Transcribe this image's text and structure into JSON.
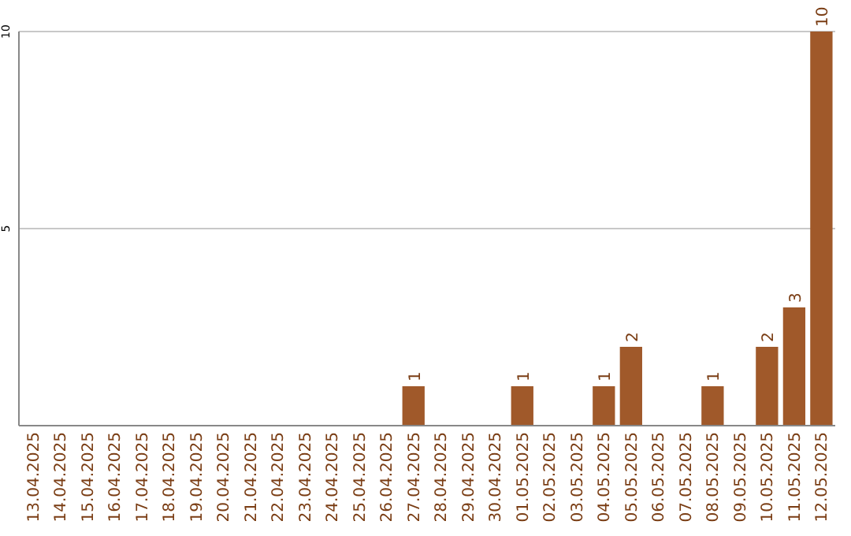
{
  "chart_data": {
    "type": "bar",
    "categories": [
      "13.04.2025",
      "14.04.2025",
      "15.04.2025",
      "16.04.2025",
      "17.04.2025",
      "18.04.2025",
      "19.04.2025",
      "20.04.2025",
      "21.04.2025",
      "22.04.2025",
      "23.04.2025",
      "24.04.2025",
      "25.04.2025",
      "26.04.2025",
      "27.04.2025",
      "28.04.2025",
      "29.04.2025",
      "30.04.2025",
      "01.05.2025",
      "02.05.2025",
      "03.05.2025",
      "04.05.2025",
      "05.05.2025",
      "06.05.2025",
      "07.05.2025",
      "08.05.2025",
      "09.05.2025",
      "10.05.2025",
      "11.05.2025",
      "12.05.2025"
    ],
    "values": [
      0,
      0,
      0,
      0,
      0,
      0,
      0,
      0,
      0,
      0,
      0,
      0,
      0,
      0,
      1,
      0,
      0,
      0,
      1,
      0,
      0,
      1,
      2,
      0,
      0,
      1,
      0,
      2,
      3,
      10
    ],
    "value_labels": [
      null,
      null,
      null,
      null,
      null,
      null,
      null,
      null,
      null,
      null,
      null,
      null,
      null,
      null,
      "1",
      null,
      null,
      null,
      "1",
      null,
      null,
      "1",
      "2",
      null,
      null,
      "1",
      null,
      "2",
      "3",
      "10"
    ],
    "color": "#a0592a",
    "ylim": [
      0,
      10
    ],
    "yticks": [
      5,
      10
    ],
    "grid": "y"
  }
}
